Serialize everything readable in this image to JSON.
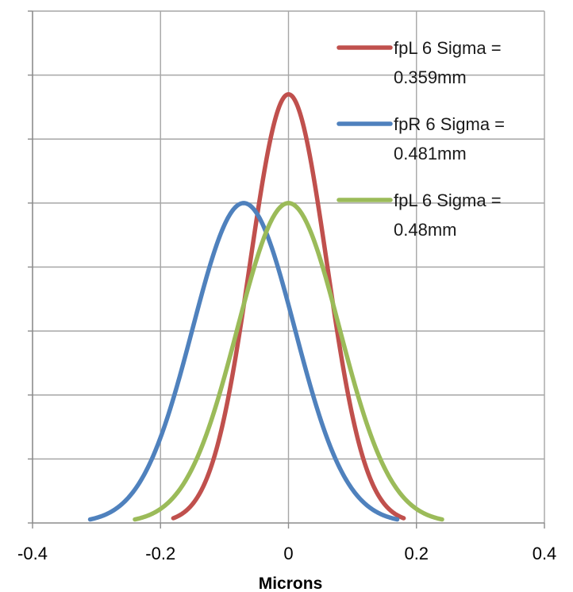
{
  "chart_data": {
    "type": "line",
    "title": "",
    "xlabel": "Microns",
    "ylabel": "",
    "xlim": [
      -0.4,
      0.4
    ],
    "xticks": [
      -0.4,
      -0.2,
      0,
      0.2,
      0.4
    ],
    "xtick_labels": [
      "-0.4",
      "-0.2",
      "0",
      "0.2",
      "0.4"
    ],
    "ylim": [
      0,
      8
    ],
    "y_gridlines": [
      1,
      2,
      3,
      4,
      5,
      6,
      7,
      8
    ],
    "y_tick_labels_shown": false,
    "grid": true,
    "legend_position": "top-right",
    "series": [
      {
        "legend_lines": [
          "fpL  6 Sigma =",
          "0.359mm"
        ],
        "color": "#c0504d",
        "curve": "gaussian",
        "mean": 0,
        "peak": 6.7,
        "sigma": 0.06,
        "x_range": [
          -0.18,
          0.18
        ]
      },
      {
        "legend_lines": [
          "fpR  6 Sigma =",
          "0.481mm"
        ],
        "color": "#4f81bd",
        "curve": "gaussian",
        "mean": -0.07,
        "peak": 5.0,
        "sigma": 0.08,
        "x_range": [
          -0.31,
          0.17
        ]
      },
      {
        "legend_lines": [
          "fpL 6 Sigma =",
          "0.48mm"
        ],
        "color": "#9bbb59",
        "curve": "gaussian",
        "mean": 0,
        "peak": 5.0,
        "sigma": 0.08,
        "x_range": [
          -0.24,
          0.24
        ]
      }
    ]
  }
}
